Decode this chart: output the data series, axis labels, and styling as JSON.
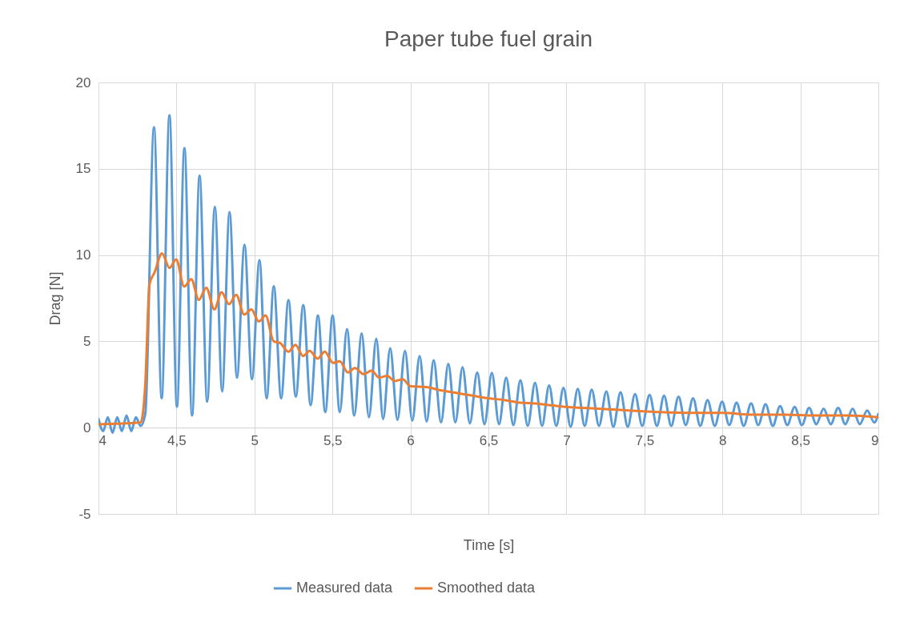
{
  "chart_data": {
    "type": "line",
    "title": "Paper tube fuel grain",
    "xlabel": "Time [s]",
    "ylabel": "Drag [N]",
    "xlim": [
      4,
      9
    ],
    "xticks": [
      4,
      {
        "value": 4.5,
        "label": "4,5"
      },
      5,
      {
        "value": 5.5,
        "label": "5,5"
      },
      6,
      {
        "value": 6.5,
        "label": "6,5"
      },
      7,
      {
        "value": 7.5,
        "label": "7,5"
      },
      8,
      {
        "value": 8.5,
        "label": "8,5"
      },
      9
    ],
    "ylim": [
      -5,
      20
    ],
    "yticks": [
      -5,
      0,
      5,
      10,
      15,
      20
    ],
    "grid": true,
    "legend": "bottom",
    "marker": "none",
    "line_style": "solid",
    "series": [
      {
        "name": "Measured data",
        "color": "#5b9bd5",
        "x": [
          4,
          4.03,
          4.06,
          4.09,
          4.12,
          4.15,
          4.18,
          4.21,
          4.24,
          4.27,
          4.3,
          4.356,
          4.405,
          4.455,
          4.503,
          4.551,
          4.6,
          4.648,
          4.697,
          4.746,
          4.793,
          4.84,
          4.888,
          4.936,
          4.984,
          5.032,
          5.078,
          5.124,
          5.171,
          5.218,
          5.265,
          5.313,
          5.36,
          5.407,
          5.454,
          5.501,
          5.547,
          5.593,
          5.64,
          5.687,
          5.734,
          5.781,
          5.825,
          5.87,
          5.917,
          5.965,
          6.012,
          6.059,
          6.104,
          6.149,
          6.196,
          6.243,
          6.288,
          6.334,
          6.381,
          6.428,
          6.475,
          6.522,
          6.568,
          6.614,
          6.66,
          6.705,
          6.752,
          6.799,
          6.844,
          6.889,
          6.935,
          6.981,
          7.027,
          7.073,
          7.117,
          7.162,
          7.209,
          7.256,
          7.301,
          7.347,
          7.393,
          7.44,
          7.486,
          7.533,
          7.58,
          7.626,
          7.672,
          7.719,
          7.765,
          7.812,
          7.858,
          7.905,
          7.951,
          7.998,
          8.044,
          8.091,
          8.137,
          8.184,
          8.23,
          8.277,
          8.323,
          8.37,
          8.416,
          8.463,
          8.51,
          8.556,
          8.602,
          8.649,
          8.695,
          8.742,
          8.788,
          8.835,
          8.881,
          8.928,
          8.974,
          9
        ],
        "values": [
          0.5,
          -0.2,
          0.6,
          -0.3,
          0.6,
          -0.2,
          0.7,
          -0.2,
          0.6,
          0.1,
          0.8,
          17.4,
          1.7,
          18.1,
          1.2,
          16.2,
          0.7,
          14.6,
          1.5,
          12.8,
          2.1,
          12.5,
          2.9,
          10.6,
          2.8,
          9.7,
          1.7,
          8.2,
          1.7,
          7.4,
          1.8,
          7.1,
          1.3,
          6.5,
          0.9,
          6.5,
          0.9,
          5.7,
          0.7,
          5.46,
          0.6,
          5.15,
          0.5,
          4.6,
          0.45,
          4.45,
          0.4,
          4.15,
          0.35,
          3.9,
          0.3,
          3.7,
          0.3,
          3.5,
          0.25,
          3.2,
          0.2,
          3.17,
          0.2,
          2.9,
          0.15,
          2.75,
          0.1,
          2.6,
          0.1,
          2.45,
          0.1,
          2.3,
          0.05,
          2.25,
          0.1,
          2.2,
          0.1,
          2.1,
          0.05,
          2.05,
          0.05,
          1.95,
          0.1,
          1.9,
          0.1,
          1.85,
          0.1,
          1.8,
          0.15,
          1.7,
          0.1,
          1.6,
          0.1,
          1.5,
          0.15,
          1.45,
          0.1,
          1.4,
          0.15,
          1.35,
          0.1,
          1.25,
          0.15,
          1.2,
          0.15,
          1.15,
          0.2,
          1.1,
          0.2,
          1.15,
          0.2,
          1.1,
          0.2,
          1.0,
          0.3,
          0.8
        ]
      },
      {
        "name": "Smoothed data",
        "color": "#ed7d31",
        "x": [
          4,
          4.27,
          4.3,
          4.327,
          4.36,
          4.407,
          4.455,
          4.498,
          4.549,
          4.595,
          4.643,
          4.691,
          4.743,
          4.789,
          4.837,
          4.883,
          4.934,
          4.98,
          5.028,
          5.071,
          5.123,
          5.165,
          5.217,
          5.263,
          5.311,
          5.354,
          5.405,
          5.451,
          5.504,
          5.547,
          5.598,
          5.644,
          5.7,
          5.75,
          5.8,
          5.85,
          5.9,
          5.95,
          6,
          6.1,
          6.2,
          6.3,
          6.4,
          6.5,
          6.6,
          6.7,
          6.8,
          6.9,
          7,
          7.2,
          7.4,
          7.6,
          7.8,
          8,
          8.2,
          8.4,
          8.6,
          8.8,
          9
        ],
        "values": [
          0.2,
          0.3,
          2.5,
          8.3,
          9.0,
          10.1,
          9.25,
          9.75,
          8.17,
          8.6,
          7.4,
          8.1,
          6.85,
          7.85,
          7.15,
          7.7,
          6.55,
          6.85,
          6.15,
          6.5,
          5.0,
          4.9,
          4.4,
          4.8,
          4.15,
          4.45,
          4.0,
          4.4,
          3.75,
          3.85,
          3.2,
          3.45,
          3.1,
          3.3,
          2.9,
          3.0,
          2.7,
          2.8,
          2.4,
          2.35,
          2.15,
          2.0,
          1.85,
          1.7,
          1.6,
          1.45,
          1.4,
          1.3,
          1.2,
          1.1,
          1.0,
          0.9,
          0.85,
          0.85,
          0.75,
          0.75,
          0.7,
          0.7,
          0.6
        ]
      }
    ]
  }
}
